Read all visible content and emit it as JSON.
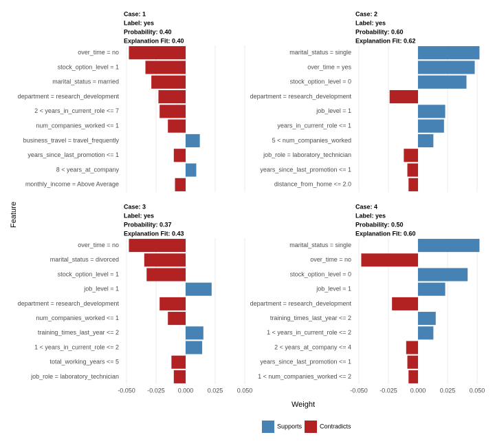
{
  "xlabel": "Weight",
  "ylabel": "Feature",
  "xlim": [
    -0.0535,
    0.0535
  ],
  "xticks": [
    {
      "value": -0.05,
      "label": "-0.050"
    },
    {
      "value": -0.025,
      "label": "-0.025"
    },
    {
      "value": 0,
      "label": "0.000"
    },
    0.025,
    {
      "value": 0.05,
      "label": "0.050"
    }
  ],
  "grid": true,
  "legend": [
    {
      "name": "Supports",
      "color": "#4682b4"
    },
    {
      "name": "Contradicts",
      "color": "#b22222"
    }
  ],
  "chart_data": [
    {
      "type": "bar",
      "orientation": "horizontal",
      "title": [
        "Case: 1",
        "Label: yes",
        "Probability: 0.40",
        "Explanation Fit: 0.40"
      ],
      "categories": [
        "over_time = no",
        "stock_option_level = 1",
        "marital_status = married",
        "department = research_development",
        "2 < years_in_current_role <= 7",
        "num_companies_worked <= 1",
        "business_travel = travel_frequently",
        "years_since_last_promotion <= 1",
        "8 < years_at_company",
        "monthly_income = Above Average"
      ],
      "values": [
        -0.048,
        -0.034,
        -0.029,
        -0.023,
        -0.022,
        -0.015,
        0.012,
        -0.01,
        0.009,
        -0.009
      ]
    },
    {
      "type": "bar",
      "orientation": "horizontal",
      "title": [
        "Case: 2",
        "Label: yes",
        "Probability: 0.60",
        "Explanation Fit: 0.62"
      ],
      "categories": [
        "marital_status = single",
        "over_time = yes",
        "stock_option_level = 0",
        "department = research_development",
        "job_level = 1",
        "years_in_current_role <= 1",
        "5 < num_companies_worked",
        "job_role = laboratory_technician",
        "years_since_last_promotion <= 1",
        "distance_from_home <= 2.0"
      ],
      "values": [
        0.052,
        0.048,
        0.041,
        -0.024,
        0.023,
        0.022,
        0.013,
        -0.012,
        -0.009,
        -0.008
      ]
    },
    {
      "type": "bar",
      "orientation": "horizontal",
      "title": [
        "Case: 3",
        "Label: yes",
        "Probability: 0.37",
        "Explanation Fit: 0.43"
      ],
      "categories": [
        "over_time = no",
        "marital_status = divorced",
        "stock_option_level = 1",
        "job_level = 1",
        "department = research_development",
        "num_companies_worked <= 1",
        "training_times_last_year <= 2",
        "1 < years_in_current_role <= 2",
        "total_working_years <= 5",
        "job_role = laboratory_technician"
      ],
      "values": [
        -0.048,
        -0.035,
        -0.033,
        0.022,
        -0.022,
        -0.015,
        0.015,
        0.014,
        -0.012,
        -0.01
      ]
    },
    {
      "type": "bar",
      "orientation": "horizontal",
      "title": [
        "Case: 4",
        "Label: yes",
        "Probability: 0.50",
        "Explanation Fit: 0.60"
      ],
      "categories": [
        "marital_status = single",
        "over_time = no",
        "stock_option_level = 0",
        "job_level = 1",
        "department = research_development",
        "training_times_last_year <= 2",
        "1 < years_in_current_role <= 2",
        "2 < years_at_company <= 4",
        "years_since_last_promotion <= 1",
        "1 < num_companies_worked <= 2"
      ],
      "values": [
        0.052,
        -0.048,
        0.042,
        0.023,
        -0.022,
        0.015,
        0.013,
        -0.01,
        -0.009,
        -0.008
      ]
    }
  ]
}
